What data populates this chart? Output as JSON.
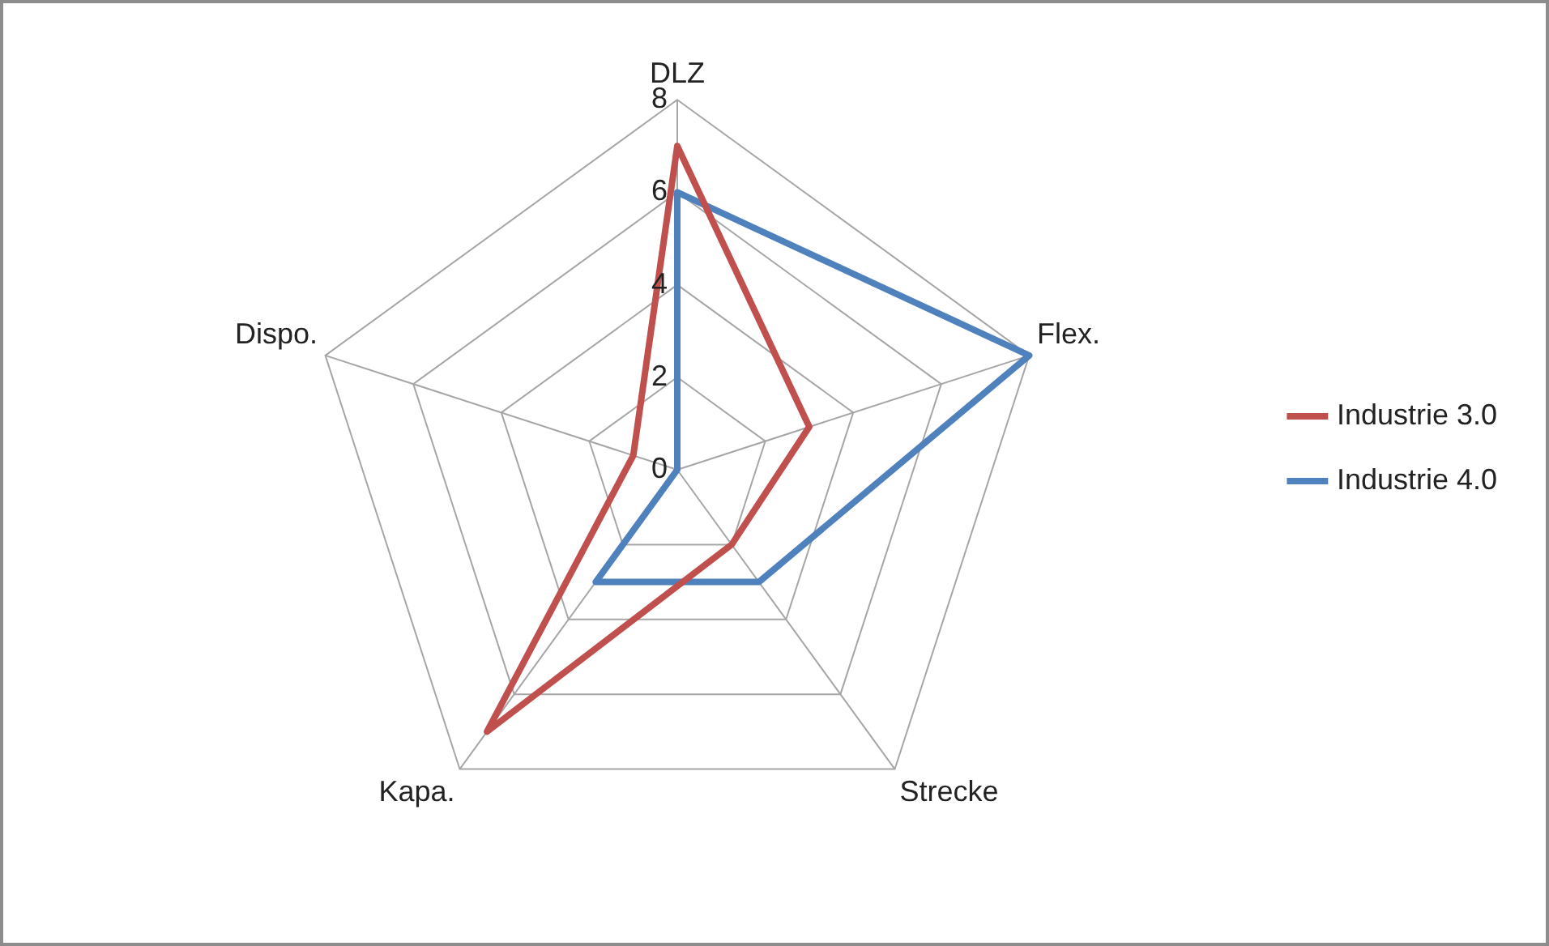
{
  "chart_data": {
    "type": "radar",
    "categories": [
      "DLZ",
      "Flex.",
      "Strecke",
      "Kapa.",
      "Dispo."
    ],
    "series": [
      {
        "name": "Industrie 3.0",
        "color": "#c0504d",
        "values": [
          7,
          3,
          2,
          7,
          1
        ]
      },
      {
        "name": "Industrie 4.0",
        "color": "#4f81bd",
        "values": [
          6,
          8,
          3,
          3,
          0
        ]
      }
    ],
    "ylim": [
      0,
      8
    ],
    "yticks": [
      0,
      2,
      4,
      6,
      8
    ],
    "grid": true,
    "legend": "right",
    "marker": "none"
  }
}
